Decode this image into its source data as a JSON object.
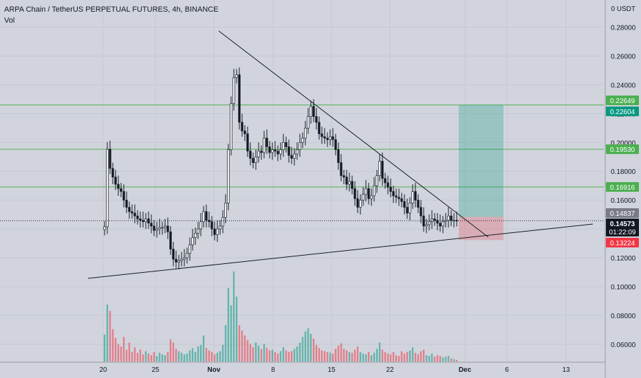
{
  "header": {
    "title": "ARPA Chain / TetherUS PERPETUAL FUTURES, 4h, BINANCE",
    "indicator": "Vol",
    "currency": "0 USDT"
  },
  "chart_data": {
    "type": "candlestick",
    "y_ticks": [
      "0.28000",
      "0.26000",
      "0.24000",
      "0.22000",
      "0.20000",
      "0.18000",
      "0.16000",
      "0.14000",
      "0.12000",
      "0.10000",
      "0.08000",
      "0.06000"
    ],
    "ylim": [
      0.048,
      0.296
    ],
    "x_ticks": [
      "20",
      "25",
      "Nov",
      "8",
      "15",
      "22",
      "Dec",
      "6",
      "13"
    ],
    "grid": true,
    "horizontal_levels": [
      {
        "value": 0.22604,
        "label": "0.22604",
        "color": "#089981"
      },
      {
        "value": 0.1953,
        "label": "0.19530",
        "color": "#4caf50"
      },
      {
        "value": 0.16916,
        "label": "0.16916",
        "color": "#4caf50"
      }
    ],
    "price_labels": [
      {
        "value": 0.22649,
        "label": "0.22649",
        "color": "#4caf50"
      },
      {
        "value": 0.14837,
        "label": "0.14837",
        "color": "#787b86"
      },
      {
        "value": 0.14573,
        "label": "0.14573",
        "color": "#131722",
        "sub": "01:22:09"
      },
      {
        "value": 0.13224,
        "label": "0.13224",
        "color": "#f23645"
      }
    ],
    "current_price": 0.14573,
    "position": {
      "entry": 0.14837,
      "target": 0.22604,
      "stop": 0.13224
    },
    "trendlines": [
      "descending resistance",
      "ascending support"
    ],
    "price_path": [
      [
        0,
        0.1415
      ],
      [
        1,
        0.1953
      ],
      [
        2,
        0.182
      ],
      [
        3,
        0.176
      ],
      [
        4,
        0.171
      ],
      [
        5,
        0.168
      ],
      [
        6,
        0.166
      ],
      [
        7,
        0.16
      ],
      [
        8,
        0.155
      ],
      [
        9,
        0.152
      ],
      [
        10,
        0.151
      ],
      [
        11,
        0.149
      ],
      [
        12,
        0.147
      ],
      [
        13,
        0.146
      ],
      [
        14,
        0.145
      ],
      [
        15,
        0.147
      ],
      [
        16,
        0.144
      ],
      [
        17,
        0.142
      ],
      [
        18,
        0.139
      ],
      [
        19,
        0.14
      ],
      [
        20,
        0.141
      ],
      [
        21,
        0.141
      ],
      [
        22,
        0.142
      ],
      [
        23,
        0.138
      ],
      [
        24,
        0.126
      ],
      [
        25,
        0.119
      ],
      [
        26,
        0.117
      ],
      [
        27,
        0.118
      ],
      [
        28,
        0.119
      ],
      [
        29,
        0.12
      ],
      [
        30,
        0.123
      ],
      [
        31,
        0.129
      ],
      [
        32,
        0.134
      ],
      [
        33,
        0.137
      ],
      [
        34,
        0.14
      ],
      [
        35,
        0.145
      ],
      [
        36,
        0.152
      ],
      [
        37,
        0.146
      ],
      [
        38,
        0.145
      ],
      [
        39,
        0.14
      ],
      [
        40,
        0.136
      ],
      [
        41,
        0.14
      ],
      [
        42,
        0.142
      ],
      [
        43,
        0.148
      ],
      [
        44,
        0.158
      ],
      [
        45,
        0.195
      ],
      [
        46,
        0.227
      ],
      [
        47,
        0.245
      ],
      [
        48,
        0.247
      ],
      [
        49,
        0.214
      ],
      [
        50,
        0.208
      ],
      [
        51,
        0.206
      ],
      [
        52,
        0.194
      ],
      [
        53,
        0.189
      ],
      [
        54,
        0.186
      ],
      [
        55,
        0.19
      ],
      [
        56,
        0.194
      ],
      [
        57,
        0.193
      ],
      [
        58,
        0.203
      ],
      [
        59,
        0.197
      ],
      [
        60,
        0.193
      ],
      [
        61,
        0.195
      ],
      [
        62,
        0.194
      ],
      [
        63,
        0.192
      ],
      [
        64,
        0.195
      ],
      [
        65,
        0.2
      ],
      [
        66,
        0.197
      ],
      [
        67,
        0.191
      ],
      [
        68,
        0.189
      ],
      [
        69,
        0.192
      ],
      [
        70,
        0.195
      ],
      [
        71,
        0.2
      ],
      [
        72,
        0.203
      ],
      [
        73,
        0.21
      ],
      [
        74,
        0.218
      ],
      [
        75,
        0.225
      ],
      [
        76,
        0.218
      ],
      [
        77,
        0.214
      ],
      [
        78,
        0.206
      ],
      [
        79,
        0.204
      ],
      [
        80,
        0.203
      ],
      [
        81,
        0.202
      ],
      [
        82,
        0.204
      ],
      [
        83,
        0.202
      ],
      [
        84,
        0.195
      ],
      [
        85,
        0.186
      ],
      [
        86,
        0.177
      ],
      [
        87,
        0.176
      ],
      [
        88,
        0.171
      ],
      [
        89,
        0.173
      ],
      [
        90,
        0.168
      ],
      [
        91,
        0.161
      ],
      [
        92,
        0.155
      ],
      [
        93,
        0.16
      ],
      [
        94,
        0.164
      ],
      [
        95,
        0.168
      ],
      [
        96,
        0.161
      ],
      [
        97,
        0.163
      ],
      [
        98,
        0.17
      ],
      [
        99,
        0.177
      ],
      [
        100,
        0.187
      ],
      [
        101,
        0.175
      ],
      [
        102,
        0.172
      ],
      [
        103,
        0.169
      ],
      [
        104,
        0.166
      ],
      [
        105,
        0.163
      ],
      [
        106,
        0.162
      ],
      [
        107,
        0.161
      ],
      [
        108,
        0.159
      ],
      [
        109,
        0.155
      ],
      [
        110,
        0.151
      ],
      [
        111,
        0.158
      ],
      [
        112,
        0.166
      ],
      [
        113,
        0.16
      ],
      [
        114,
        0.155
      ],
      [
        115,
        0.149
      ],
      [
        116,
        0.142
      ],
      [
        117,
        0.143
      ],
      [
        118,
        0.145
      ],
      [
        119,
        0.147
      ],
      [
        120,
        0.146
      ],
      [
        121,
        0.144
      ],
      [
        122,
        0.142
      ],
      [
        123,
        0.145
      ],
      [
        124,
        0.146
      ],
      [
        125,
        0.149
      ],
      [
        126,
        0.146
      ],
      [
        127,
        0.146
      ],
      [
        128,
        0.1457
      ]
    ],
    "volume": [
      [
        0,
        3.4
      ],
      [
        1,
        7.2
      ],
      [
        2,
        6.4
      ],
      [
        3,
        4.1
      ],
      [
        4,
        3.0
      ],
      [
        5,
        2.2
      ],
      [
        6,
        1.9
      ],
      [
        7,
        3.1
      ],
      [
        8,
        1.5
      ],
      [
        9,
        2.4
      ],
      [
        10,
        1.2
      ],
      [
        11,
        1.8
      ],
      [
        12,
        1.1
      ],
      [
        13,
        1.5
      ],
      [
        14,
        0.9
      ],
      [
        15,
        1.3
      ],
      [
        16,
        1.0
      ],
      [
        17,
        0.8
      ],
      [
        18,
        1.2
      ],
      [
        19,
        0.7
      ],
      [
        20,
        1.1
      ],
      [
        21,
        0.9
      ],
      [
        22,
        0.8
      ],
      [
        23,
        1.2
      ],
      [
        24,
        2.8
      ],
      [
        25,
        2.4
      ],
      [
        26,
        1.6
      ],
      [
        27,
        1.3
      ],
      [
        28,
        1.1
      ],
      [
        29,
        0.9
      ],
      [
        30,
        1.0
      ],
      [
        31,
        1.4
      ],
      [
        32,
        1.7
      ],
      [
        33,
        1.2
      ],
      [
        34,
        1.9
      ],
      [
        35,
        2.1
      ],
      [
        36,
        3.3
      ],
      [
        37,
        1.7
      ],
      [
        38,
        1.4
      ],
      [
        39,
        1.2
      ],
      [
        40,
        0.9
      ],
      [
        41,
        1.1
      ],
      [
        42,
        1.3
      ],
      [
        43,
        2.1
      ],
      [
        44,
        4.6
      ],
      [
        45,
        9.3
      ],
      [
        46,
        7.1
      ],
      [
        47,
        11.4
      ],
      [
        48,
        8.2
      ],
      [
        49,
        4.6
      ],
      [
        50,
        3.9
      ],
      [
        51,
        3.3
      ],
      [
        52,
        2.7
      ],
      [
        53,
        2.2
      ],
      [
        54,
        1.8
      ],
      [
        55,
        2.4
      ],
      [
        56,
        2.0
      ],
      [
        57,
        1.6
      ],
      [
        58,
        2.2
      ],
      [
        59,
        1.7
      ],
      [
        60,
        1.4
      ],
      [
        61,
        1.5
      ],
      [
        62,
        1.2
      ],
      [
        63,
        1.0
      ],
      [
        64,
        1.3
      ],
      [
        65,
        1.8
      ],
      [
        66,
        1.4
      ],
      [
        67,
        1.2
      ],
      [
        68,
        1.3
      ],
      [
        69,
        1.6
      ],
      [
        70,
        1.9
      ],
      [
        71,
        2.4
      ],
      [
        72,
        3.1
      ],
      [
        73,
        3.8
      ],
      [
        74,
        4.2
      ],
      [
        75,
        3.5
      ],
      [
        76,
        2.9
      ],
      [
        77,
        2.1
      ],
      [
        78,
        1.7
      ],
      [
        79,
        1.4
      ],
      [
        80,
        1.3
      ],
      [
        81,
        1.2
      ],
      [
        82,
        1.1
      ],
      [
        83,
        1.0
      ],
      [
        84,
        1.6
      ],
      [
        85,
        2.0
      ],
      [
        86,
        2.3
      ],
      [
        87,
        1.6
      ],
      [
        88,
        1.4
      ],
      [
        89,
        1.2
      ],
      [
        90,
        1.1
      ],
      [
        91,
        1.5
      ],
      [
        92,
        1.9
      ],
      [
        93,
        1.2
      ],
      [
        94,
        1.0
      ],
      [
        95,
        0.9
      ],
      [
        96,
        1.2
      ],
      [
        97,
        0.8
      ],
      [
        98,
        1.1
      ],
      [
        99,
        1.6
      ],
      [
        100,
        2.4
      ],
      [
        101,
        1.5
      ],
      [
        102,
        1.2
      ],
      [
        103,
        1.0
      ],
      [
        104,
        0.9
      ],
      [
        105,
        1.2
      ],
      [
        106,
        0.8
      ],
      [
        107,
        0.7
      ],
      [
        108,
        1.3
      ],
      [
        109,
        1.0
      ],
      [
        110,
        1.2
      ],
      [
        111,
        1.4
      ],
      [
        112,
        1.8
      ],
      [
        113,
        1.1
      ],
      [
        114,
        0.9
      ],
      [
        115,
        1.3
      ],
      [
        116,
        1.5
      ],
      [
        117,
        0.8
      ],
      [
        118,
        0.7
      ],
      [
        119,
        1.0
      ],
      [
        120,
        0.6
      ],
      [
        121,
        0.8
      ],
      [
        122,
        0.7
      ],
      [
        123,
        0.5
      ],
      [
        124,
        0.6
      ],
      [
        125,
        0.7
      ],
      [
        126,
        0.4
      ],
      [
        127,
        0.3
      ],
      [
        128,
        0.2
      ]
    ],
    "colors": {
      "background": "#d1d4dc",
      "grid": "#c5c8d0",
      "up": "#089981",
      "down": "#f23645",
      "candle": "#131722",
      "level_line": "#4caf50",
      "target_zone": "rgba(8,153,129,0.28)",
      "stop_zone": "rgba(242,54,69,0.25)"
    }
  }
}
